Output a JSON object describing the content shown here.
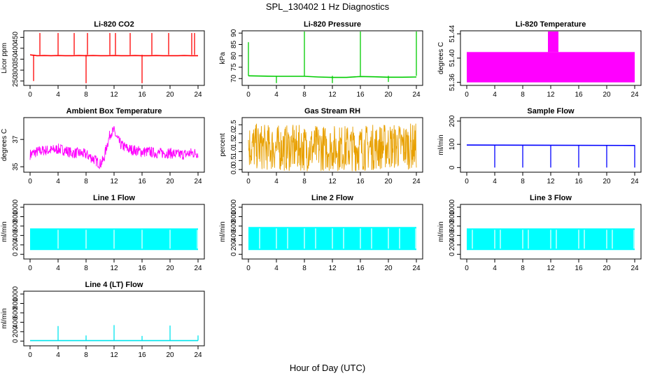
{
  "figure": {
    "title": "SPL_130402  1 Hz Diagnostics",
    "xlabel": "Hour of Day (UTC)"
  },
  "chart_data": [
    {
      "type": "line",
      "title": "Li-820 CO2",
      "ylabel": "Licor ppm",
      "xlim": [
        0,
        24
      ],
      "ylim": [
        230,
        480
      ],
      "xticks": [
        0,
        4,
        8,
        12,
        16,
        20,
        24
      ],
      "yticks": [
        250,
        300,
        350,
        400,
        450
      ],
      "color": "#ff0000",
      "base_level": [
        365,
        368
      ],
      "spikes": [
        [
          0.5,
          250
        ],
        [
          1.4,
          470
        ],
        [
          4,
          470
        ],
        [
          6.3,
          470
        ],
        [
          8,
          240
        ],
        [
          8.2,
          470
        ],
        [
          11.4,
          470
        ],
        [
          12.2,
          470
        ],
        [
          14.3,
          470
        ],
        [
          16,
          240
        ],
        [
          17.4,
          470
        ],
        [
          19.8,
          470
        ],
        [
          23.1,
          470
        ],
        [
          23.5,
          470
        ]
      ],
      "series": [
        {
          "x": [
            0,
            1,
            2,
            3,
            4,
            5,
            6,
            7,
            8,
            9,
            10,
            11,
            12,
            13,
            14,
            15,
            16,
            17,
            18,
            19,
            20,
            21,
            22,
            23,
            24
          ],
          "y": [
            370,
            366,
            367,
            366,
            367,
            366,
            366,
            367,
            366,
            367,
            366,
            366,
            367,
            366,
            366,
            367,
            366,
            366,
            367,
            366,
            366,
            366,
            367,
            366,
            366
          ]
        }
      ]
    },
    {
      "type": "line",
      "title": "Li-820 Pressure",
      "ylabel": "kPa",
      "xlim": [
        0,
        24
      ],
      "ylim": [
        67,
        91
      ],
      "xticks": [
        0,
        4,
        8,
        12,
        16,
        20,
        24
      ],
      "yticks": [
        70,
        75,
        80,
        85,
        90
      ],
      "color": "#00cc00",
      "spikes": [
        [
          0,
          86
        ],
        [
          8,
          91
        ],
        [
          16,
          91
        ],
        [
          24,
          91
        ]
      ],
      "dips": [
        [
          4,
          68
        ],
        [
          12,
          68
        ],
        [
          20,
          68.5
        ]
      ],
      "series": [
        {
          "x": [
            0,
            2,
            4,
            6,
            8,
            10,
            12,
            14,
            16,
            18,
            20,
            22,
            24
          ],
          "y": [
            71.2,
            71.1,
            71,
            71,
            71,
            70.7,
            70.5,
            70.5,
            70.9,
            70.8,
            70.6,
            70.6,
            70.7
          ]
        }
      ]
    },
    {
      "type": "area",
      "title": "Li-820 Temperature",
      "ylabel": "degrees C",
      "xlim": [
        0,
        24
      ],
      "ylim": [
        51.355,
        51.445
      ],
      "xticks": [
        0,
        4,
        8,
        12,
        16,
        20,
        24
      ],
      "yticks": [
        51.36,
        51.4,
        51.44
      ],
      "color": "#ff00ff",
      "bands": [
        [
          0,
          24,
          51.36,
          51.41
        ],
        [
          11.6,
          13.1,
          51.41,
          51.445
        ]
      ]
    },
    {
      "type": "line",
      "title": "Ambient Box Temperature",
      "ylabel": "degrees C",
      "xlim": [
        0,
        24
      ],
      "ylim": [
        34.6,
        38.6
      ],
      "xticks": [
        0,
        4,
        8,
        12,
        16,
        20,
        24
      ],
      "yticks": [
        35,
        37
      ],
      "color": "#ff00ff",
      "series": [
        {
          "x": [
            0,
            1,
            2,
            3,
            4,
            5,
            6,
            7,
            8,
            9,
            10,
            10.5,
            11,
            11.5,
            12,
            12.5,
            13,
            14,
            15,
            16,
            17,
            18,
            19,
            20,
            21,
            22,
            23,
            24
          ],
          "y": [
            35.9,
            36.1,
            36.2,
            36.2,
            36.3,
            36.2,
            36,
            36,
            35.9,
            35.6,
            35.2,
            35.5,
            36.6,
            37.5,
            37.6,
            37,
            36.6,
            36.3,
            36.2,
            36.1,
            36.1,
            36,
            36,
            36,
            35.9,
            35.9,
            36,
            36
          ]
        }
      ],
      "noise": 0.4
    },
    {
      "type": "line",
      "title": "Gas Stream RH",
      "ylabel": "percent",
      "xlim": [
        0,
        24
      ],
      "ylim": [
        -0.15,
        2.9
      ],
      "xticks": [
        0,
        4,
        8,
        12,
        16,
        20,
        24
      ],
      "yticks": [
        0.0,
        0.5,
        1.0,
        1.5,
        2.0,
        2.5
      ],
      "color": "#e8a000",
      "series": [
        {
          "x": [
            0,
            4,
            8,
            12,
            16,
            20,
            24
          ],
          "y": [
            1.3,
            1.2,
            1.2,
            1.2,
            1.2,
            1.3,
            1.3
          ]
        }
      ],
      "noise": 1.3
    },
    {
      "type": "line",
      "title": "Sample Flow",
      "ylabel": "ml/min",
      "xlim": [
        0,
        24
      ],
      "ylim": [
        -20,
        215
      ],
      "xticks": [
        0,
        4,
        8,
        12,
        16,
        20,
        24
      ],
      "yticks": [
        0,
        100,
        200
      ],
      "color": "#0000ff",
      "dips": [
        [
          4,
          0
        ],
        [
          8,
          0
        ],
        [
          12,
          0
        ],
        [
          16,
          0
        ],
        [
          20,
          0
        ],
        [
          24,
          0
        ]
      ],
      "series": [
        {
          "x": [
            0,
            24
          ],
          "y": [
            97,
            95
          ]
        }
      ]
    },
    {
      "type": "area",
      "title": "Line 1 Flow",
      "ylabel": "ml/min",
      "xlim": [
        0,
        24
      ],
      "ylim": [
        -100,
        1060
      ],
      "xticks": [
        0,
        4,
        8,
        12,
        16,
        20,
        24
      ],
      "yticks": [
        0,
        200,
        400,
        600,
        800,
        1000
      ],
      "color": "#00ffff",
      "band": [
        90,
        550
      ],
      "gaps": [
        4,
        8,
        12,
        16,
        20,
        23.9
      ]
    },
    {
      "type": "area",
      "title": "Line 2 Flow",
      "ylabel": "ml/min",
      "xlim": [
        0,
        24
      ],
      "ylim": [
        -100,
        1060
      ],
      "xticks": [
        0,
        4,
        8,
        12,
        16,
        20,
        24
      ],
      "yticks": [
        0,
        200,
        400,
        600,
        800,
        1000
      ],
      "color": "#00ffff",
      "band": [
        90,
        580
      ],
      "gaps": [
        1.6,
        4,
        5.6,
        8,
        9.6,
        12,
        13.6,
        16,
        17.6,
        20,
        21.6,
        23.9
      ]
    },
    {
      "type": "area",
      "title": "Line 3 Flow",
      "ylabel": "ml/min",
      "xlim": [
        0,
        24
      ],
      "ylim": [
        -100,
        1060
      ],
      "xticks": [
        0,
        4,
        8,
        12,
        16,
        20,
        24
      ],
      "yticks": [
        0,
        200,
        400,
        600,
        800,
        1000
      ],
      "color": "#00ffff",
      "band": [
        90,
        550
      ],
      "gaps": [
        0.8,
        4,
        4.8,
        8,
        8.8,
        12,
        12.8,
        16,
        16.8,
        20,
        20.8,
        23.9
      ]
    },
    {
      "type": "line",
      "title": "Line 4 (LT) Flow",
      "ylabel": "ml/min",
      "xlim": [
        0,
        24
      ],
      "ylim": [
        -100,
        1060
      ],
      "xticks": [
        0,
        4,
        8,
        12,
        16,
        20,
        24
      ],
      "yticks": [
        0,
        200,
        400,
        600,
        800,
        1000
      ],
      "color": "#00e5ee",
      "spikes": [
        [
          4,
          320
        ],
        [
          8,
          120
        ],
        [
          12,
          340
        ],
        [
          16,
          110
        ],
        [
          20,
          330
        ],
        [
          24,
          120
        ]
      ],
      "series": [
        {
          "x": [
            0,
            24
          ],
          "y": [
            10,
            10
          ]
        }
      ]
    }
  ]
}
